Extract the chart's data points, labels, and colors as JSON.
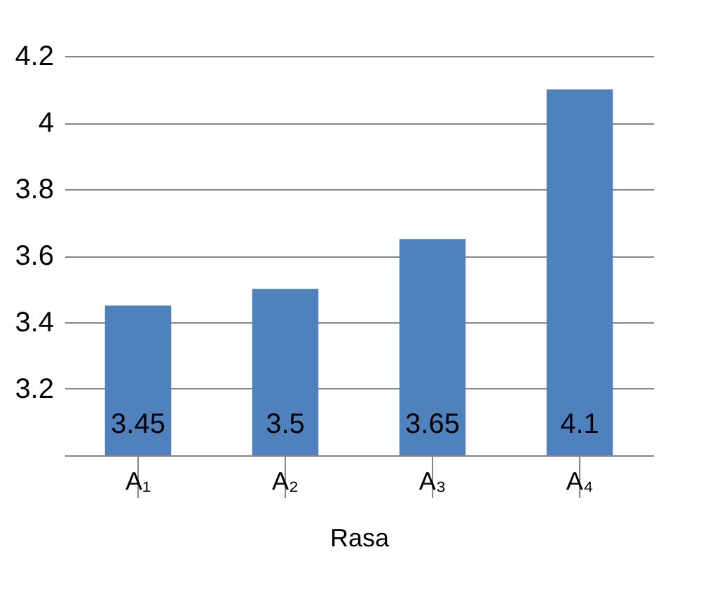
{
  "chart_data": {
    "type": "bar",
    "xlabel": "Rasa",
    "categories": [
      "A₁",
      "A₂",
      "A₃",
      "A₄"
    ],
    "values": [
      3.45,
      3.5,
      3.65,
      4.1
    ],
    "color": "#4f81bd",
    "ylim": [
      3.0,
      4.2
    ],
    "yticks": [
      {
        "value": 3.0,
        "label": null
      },
      3.2,
      3.4,
      3.6,
      3.8,
      4,
      4.2
    ],
    "grid": "y",
    "data_labels": true
  }
}
